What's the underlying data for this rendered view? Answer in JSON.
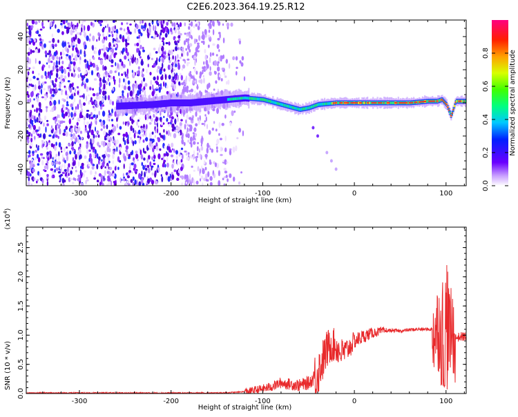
{
  "title": "C2E6.2023.364.19.25.R12",
  "colors": {
    "line": "#e8292b",
    "axis": "#000000",
    "ridge_core": "#ff2020",
    "noise": "#7a00e6"
  },
  "chart_data": [
    {
      "type": "heatmap",
      "xlabel": "Height of straight line (km)",
      "ylabel": "Frequency (Hz)",
      "xlim": [
        -358,
        122
      ],
      "ylim": [
        -50,
        50
      ],
      "xticks": [
        -300,
        -200,
        -100,
        0,
        100
      ],
      "xtick_labels": [
        "-300",
        "-200",
        "-100",
        "0",
        "100"
      ],
      "yticks": [
        -40,
        -20,
        0,
        20,
        40
      ],
      "ytick_labels": [
        "-40",
        "-20",
        "0",
        "20",
        "40"
      ],
      "noise_region_x": [
        -358,
        -115
      ],
      "ridge": {
        "x": [
          -260,
          -220,
          -200,
          -180,
          -140,
          -120,
          -100,
          -80,
          -60,
          -50,
          -40,
          -20,
          0,
          20,
          40,
          60,
          80,
          90,
          95,
          100,
          105,
          110,
          122
        ],
        "y": [
          -2,
          -1,
          0,
          0,
          2,
          3,
          2,
          -1,
          -4,
          -3,
          -1,
          0,
          0,
          0,
          0,
          0,
          1,
          1,
          2,
          -1,
          -8,
          1,
          1
        ]
      },
      "secondary_trace": {
        "x": [
          -45,
          -40,
          -30,
          -25,
          -20
        ],
        "y": [
          -15,
          -20,
          -30,
          -35,
          -40
        ]
      },
      "colorbar": {
        "label": "Normalized spectral amplitude",
        "range": [
          0,
          1
        ],
        "ticks": [
          0.0,
          0.2,
          0.4,
          0.6,
          0.8
        ],
        "tick_labels": [
          "0.0",
          "0.2",
          "0.4",
          "0.6",
          "0.8"
        ]
      },
      "grid": false
    },
    {
      "type": "line",
      "xlabel": "Height of straight line (km)",
      "ylabel": "SNR (10 * v/v)",
      "exponent_label": "(x10",
      "exponent_sup": "4",
      "exponent_close": ")",
      "xlim": [
        -358,
        122
      ],
      "ylim": [
        0,
        2.85
      ],
      "xticks": [
        -300,
        -200,
        -100,
        0,
        100
      ],
      "xtick_labels": [
        "-300",
        "-200",
        "-100",
        "0",
        "100"
      ],
      "yticks": [
        0,
        0.5,
        1.0,
        1.5,
        2.0,
        2.5
      ],
      "ytick_labels": [
        "0.0",
        "0.5",
        "1.0",
        "1.5",
        "2.0",
        "2.5"
      ],
      "series": [
        {
          "x": [
            -358,
            -300,
            -200,
            -150,
            -130,
            -115,
            -100,
            -90,
            -80,
            -70,
            -60,
            -50,
            -45,
            -40,
            -35,
            -30,
            -25,
            -20,
            -15,
            -10,
            -5,
            0,
            10,
            20,
            30,
            40,
            50,
            60,
            70,
            80,
            85,
            90,
            93,
            95,
            97,
            99,
            101,
            103,
            105,
            108,
            110,
            115,
            122
          ],
          "y": [
            0.01,
            0.01,
            0.01,
            0.01,
            0.02,
            0.04,
            0.08,
            0.12,
            0.18,
            0.16,
            0.14,
            0.18,
            0.25,
            0.35,
            0.55,
            0.75,
            0.85,
            0.8,
            0.7,
            0.72,
            0.8,
            0.9,
            0.98,
            1.04,
            1.07,
            1.08,
            1.07,
            1.09,
            1.1,
            1.1,
            1.1,
            1.08,
            1.2,
            0.8,
            0.55,
            0.7,
            1.2,
            1.1,
            1.0,
            1.05,
            0.95,
            0.97,
            0.98
          ]
        }
      ],
      "grid": false
    }
  ]
}
